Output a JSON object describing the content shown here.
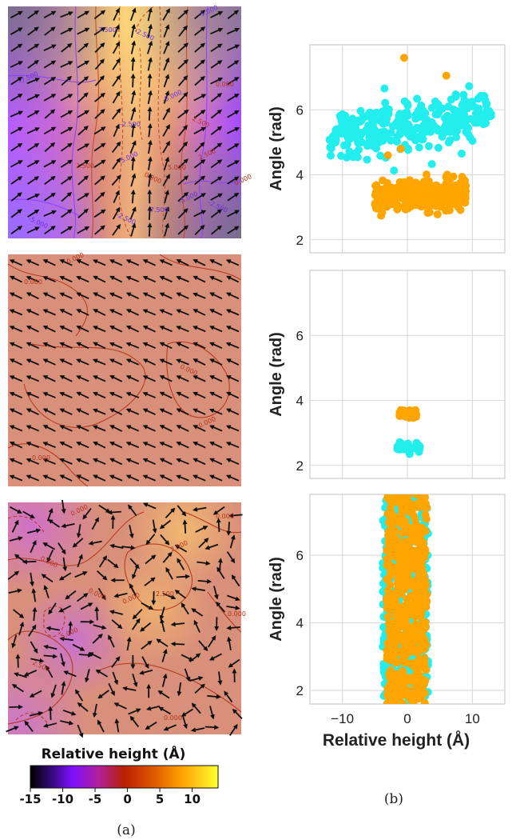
{
  "colors": {
    "cyan": "#22eeee",
    "orange": "#ffa500",
    "grid": "#d9d9d9",
    "axis_text": "#222222",
    "flat_surface": "#d9907a",
    "contour": "#c24a20",
    "contour_negative": "#7a3cff",
    "arrow": "#111111"
  },
  "captions": {
    "left": "(a)",
    "right": "(b)"
  },
  "colorbar": {
    "title": "Relative height (Å)",
    "ticks": [
      "-15",
      "-10",
      "-5",
      "0",
      "5",
      "10"
    ],
    "tick_values": [
      -15,
      -10,
      -5,
      0,
      5,
      10
    ],
    "range": [
      -15,
      14
    ],
    "colormap": "gnuplot-like: black → purple → red → orange → yellow"
  },
  "height_maps": [
    {
      "panel": "top",
      "contour_labels": [
        "-5.000",
        "-7.500",
        "-2.500",
        "-5.000",
        "0.000",
        "2.500",
        "-7.500",
        "-2.500",
        "0.000",
        "-5.000",
        "2.500",
        "-2.500",
        "2.500",
        "5.000",
        "-2.500",
        "-5.000",
        "-7.500",
        "-5.000",
        "0.000"
      ]
    },
    {
      "panel": "middle",
      "contour_labels": [
        "0.000",
        "0.000",
        "0.000",
        "0.000",
        "0.000"
      ]
    },
    {
      "panel": "bottom",
      "contour_labels": [
        "0.000",
        "0.000",
        "0.000",
        "2.500",
        "2.500",
        "0.000",
        "0.000",
        "0.000",
        "2.500",
        "-5.000",
        "0.000"
      ]
    }
  ],
  "chart_data": [
    {
      "type": "scatter",
      "panel": "top",
      "xlim": [
        -15,
        15
      ],
      "ylim": [
        1.6,
        8.0
      ],
      "xticks": [
        -10,
        0,
        10
      ],
      "yticks": [
        2,
        4,
        6
      ],
      "ylabel": "Angle (rad)",
      "xlabel": "",
      "show_x_ticklabels": false,
      "grid": true,
      "series": [
        {
          "color": "cyan",
          "cluster": {
            "x_range": [
              -12,
              13
            ],
            "y_center": 5.5,
            "y_spread": 0.55,
            "count": 300,
            "slope": 0.03
          }
        },
        {
          "color": "orange",
          "cluster": {
            "x_range": [
              -5,
              9
            ],
            "y_center": 3.35,
            "y_spread": 0.35,
            "count": 320,
            "slope": 0.0
          },
          "outliers": [
            [
              -0.5,
              7.6
            ],
            [
              6.0,
              7.05
            ],
            [
              -1.0,
              4.8
            ],
            [
              -3,
              4.6
            ]
          ]
        }
      ]
    },
    {
      "type": "scatter",
      "panel": "middle",
      "xlim": [
        -15,
        15
      ],
      "ylim": [
        1.6,
        8.0
      ],
      "xticks": [
        -10,
        0,
        10
      ],
      "yticks": [
        2,
        4,
        6
      ],
      "ylabel": "Angle (rad)",
      "xlabel": "",
      "show_x_ticklabels": false,
      "grid": true,
      "series": [
        {
          "color": "orange",
          "cluster": {
            "x_range": [
              -1.2,
              1.4
            ],
            "y_center": 3.6,
            "y_spread": 0.1,
            "count": 40
          }
        },
        {
          "color": "cyan",
          "cluster": {
            "x_range": [
              -1.6,
              2.0
            ],
            "y_center": 2.55,
            "y_spread": 0.1,
            "count": 40
          }
        }
      ]
    },
    {
      "type": "scatter",
      "panel": "bottom",
      "xlim": [
        -15,
        15
      ],
      "ylim": [
        1.6,
        7.8
      ],
      "xticks": [
        -10,
        0,
        10
      ],
      "xtick_labels": [
        "−10",
        "0",
        "10"
      ],
      "yticks": [
        2,
        4,
        6
      ],
      "ylabel": "Angle (rad)",
      "xlabel": "Relative height (Å)",
      "show_x_ticklabels": true,
      "grid": true,
      "series": [
        {
          "color": "cyan",
          "cluster": {
            "x_range": [
              -3.8,
              3.2
            ],
            "y_center": 4.7,
            "y_spread": 3.1,
            "count": 500,
            "uniform_y": true
          }
        },
        {
          "color": "orange",
          "cluster": {
            "x_range": [
              -3.2,
              3.0
            ],
            "y_center": 4.7,
            "y_spread": 3.1,
            "count": 500,
            "uniform_y": true
          }
        }
      ]
    }
  ]
}
